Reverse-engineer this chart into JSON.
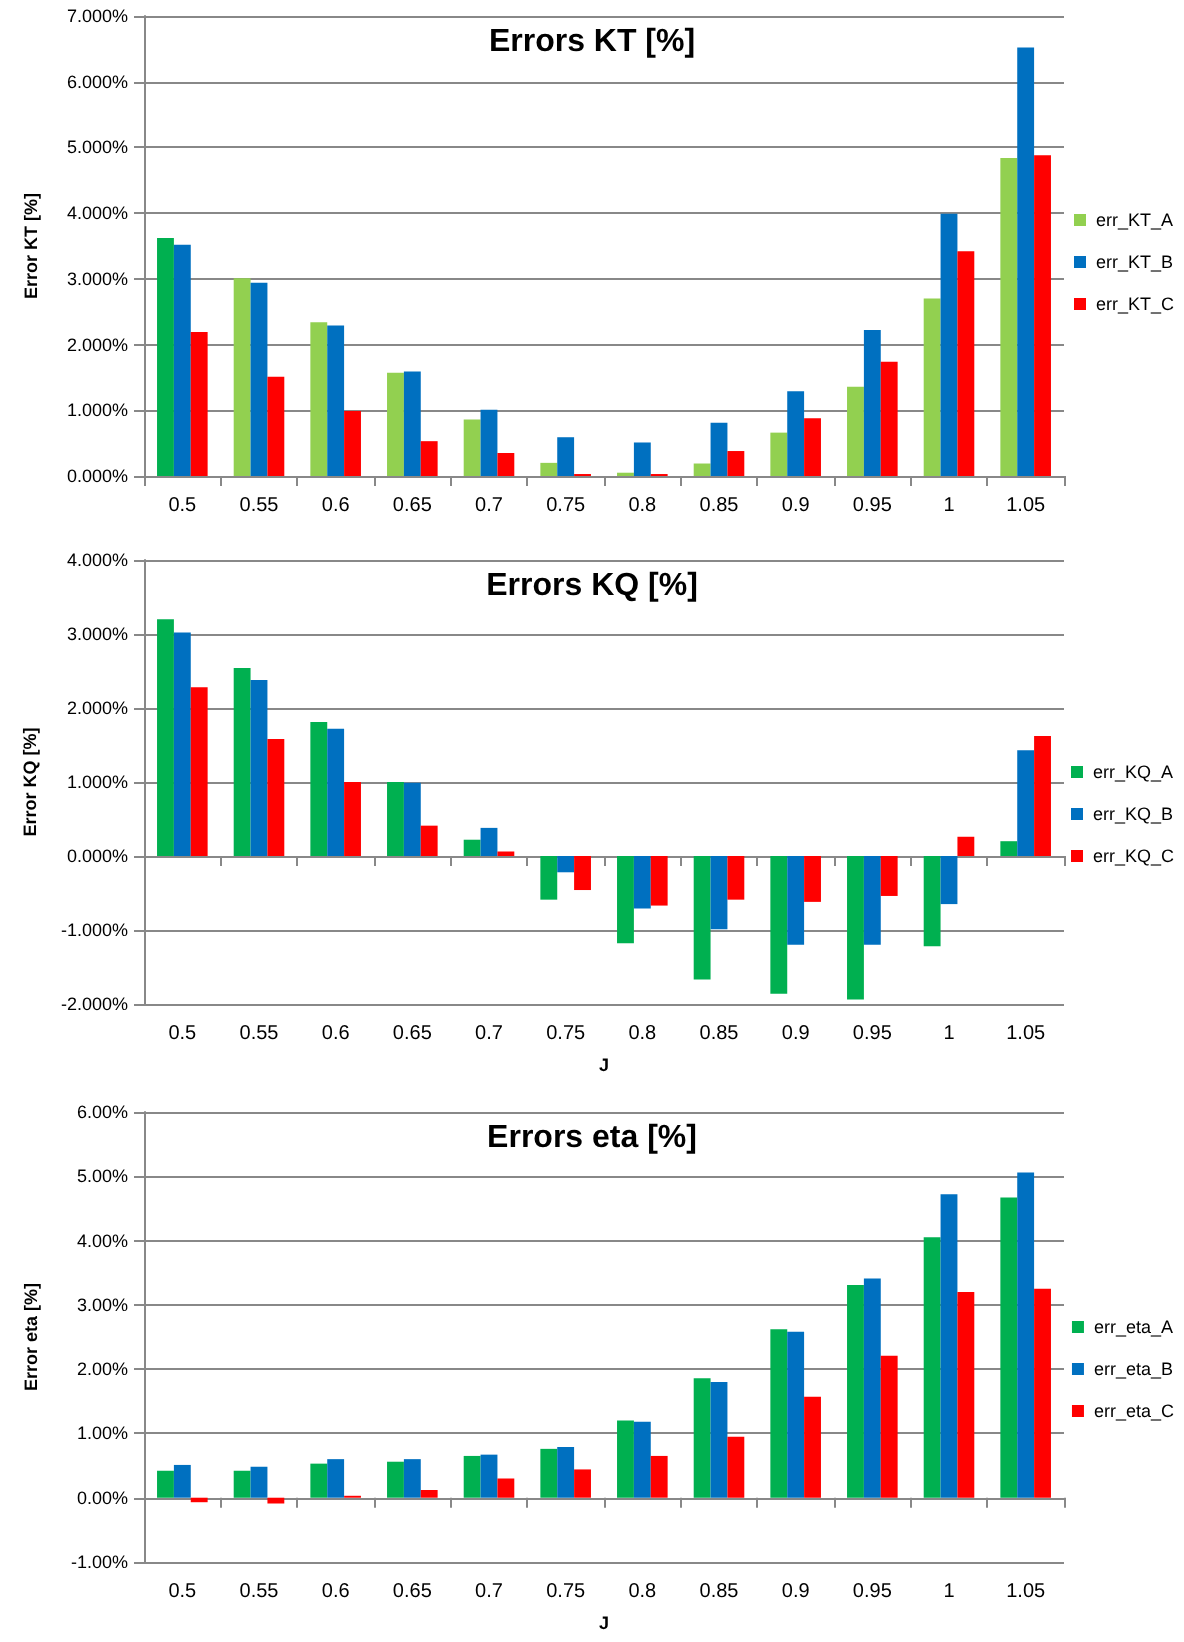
{
  "chart_data": [
    {
      "type": "bar",
      "title": "Errors KT [%]",
      "ylabel": "Error KT [%]",
      "categories": [
        "0.5",
        "0.55",
        "0.6",
        "0.65",
        "0.7",
        "0.75",
        "0.8",
        "0.85",
        "0.9",
        "0.95",
        "1",
        "1.05"
      ],
      "series": [
        {
          "name": "err_KT_A",
          "color": "#92d050",
          "colors": [
            "#00b050",
            "#92d050",
            "#92d050",
            "#92d050",
            "#92d050",
            "#92d050",
            "#92d050",
            "#92d050",
            "#92d050",
            "#92d050",
            "#92d050",
            "#92d050"
          ],
          "values": [
            3.62,
            3.01,
            2.34,
            1.57,
            0.86,
            0.2,
            0.05,
            0.19,
            0.66,
            1.36,
            2.7,
            4.84
          ]
        },
        {
          "name": "err_KT_B",
          "color": "#0070c0",
          "values": [
            3.52,
            2.94,
            2.29,
            1.59,
            1.01,
            0.59,
            0.51,
            0.81,
            1.29,
            2.22,
            3.99,
            6.52
          ]
        },
        {
          "name": "err_KT_C",
          "color": "#ff0000",
          "values": [
            2.19,
            1.51,
            0.99,
            0.53,
            0.35,
            0.03,
            0.03,
            0.38,
            0.88,
            1.74,
            3.42,
            4.88
          ]
        }
      ],
      "ylim": [
        0,
        7
      ],
      "yticks": [
        {
          "value": 0,
          "label": "0.000%"
        },
        {
          "value": 1,
          "label": "1.000%"
        },
        {
          "value": 2,
          "label": "2.000%"
        },
        {
          "value": 3,
          "label": "3.000%"
        },
        {
          "value": 4,
          "label": "4.000%"
        },
        {
          "value": 5,
          "label": "5.000%"
        },
        {
          "value": 6,
          "label": "6.000%"
        },
        {
          "value": 7,
          "label": "7.000%"
        }
      ],
      "grid": "y",
      "legend": "right"
    },
    {
      "type": "bar",
      "title": "Errors KQ [%]",
      "ylabel": "Error KQ [%]",
      "xlabel": "J",
      "categories": [
        "0.5",
        "0.55",
        "0.6",
        "0.65",
        "0.7",
        "0.75",
        "0.8",
        "0.85",
        "0.9",
        "0.95",
        "1",
        "1.05"
      ],
      "series": [
        {
          "name": "err_KQ_A",
          "color": "#00b050",
          "values": [
            3.2,
            2.54,
            1.81,
            1.0,
            0.22,
            -0.59,
            -1.18,
            -1.67,
            -1.86,
            -1.94,
            -1.22,
            0.2
          ]
        },
        {
          "name": "err_KQ_B",
          "color": "#0070c0",
          "values": [
            3.02,
            2.38,
            1.72,
            0.99,
            0.38,
            -0.22,
            -0.71,
            -0.99,
            -1.2,
            -1.2,
            -0.65,
            1.43
          ]
        },
        {
          "name": "err_KQ_C",
          "color": "#ff0000",
          "values": [
            2.28,
            1.58,
            1.0,
            0.41,
            0.06,
            -0.46,
            -0.67,
            -0.59,
            -0.62,
            -0.54,
            0.26,
            1.62
          ]
        }
      ],
      "ylim": [
        -2,
        4
      ],
      "yticks": [
        {
          "value": -2,
          "label": "-2.000%"
        },
        {
          "value": -1,
          "label": "-1.000%"
        },
        {
          "value": 0,
          "label": "0.000%"
        },
        {
          "value": 1,
          "label": "1.000%"
        },
        {
          "value": 2,
          "label": "2.000%"
        },
        {
          "value": 3,
          "label": "3.000%"
        },
        {
          "value": 4,
          "label": "4.000%"
        }
      ],
      "grid": "y",
      "legend": "right"
    },
    {
      "type": "bar",
      "title": "Errors eta [%]",
      "ylabel": "Error eta [%]",
      "xlabel": "J",
      "categories": [
        "0.5",
        "0.55",
        "0.6",
        "0.65",
        "0.7",
        "0.75",
        "0.8",
        "0.85",
        "0.9",
        "0.95",
        "1",
        "1.05"
      ],
      "series": [
        {
          "name": "err_eta_A",
          "color": "#00b050",
          "values": [
            0.42,
            0.42,
            0.53,
            0.56,
            0.65,
            0.76,
            1.2,
            1.86,
            2.62,
            3.31,
            4.05,
            4.67
          ]
        },
        {
          "name": "err_eta_B",
          "color": "#0070c0",
          "values": [
            0.51,
            0.48,
            0.6,
            0.6,
            0.67,
            0.79,
            1.18,
            1.8,
            2.58,
            3.41,
            4.72,
            5.06
          ]
        },
        {
          "name": "err_eta_C",
          "color": "#ff0000",
          "values": [
            -0.07,
            -0.09,
            0.03,
            0.12,
            0.3,
            0.44,
            0.65,
            0.95,
            1.57,
            2.21,
            3.2,
            3.25
          ]
        }
      ],
      "ylim": [
        -1,
        6
      ],
      "yticks": [
        {
          "value": -1,
          "label": "-1.00%"
        },
        {
          "value": 0,
          "label": "0.00%"
        },
        {
          "value": 1,
          "label": "1.00%"
        },
        {
          "value": 2,
          "label": "2.00%"
        },
        {
          "value": 3,
          "label": "3.00%"
        },
        {
          "value": 4,
          "label": "4.00%"
        },
        {
          "value": 5,
          "label": "5.00%"
        },
        {
          "value": 6,
          "label": "6.00%"
        }
      ],
      "grid": "y",
      "legend": "right"
    }
  ]
}
